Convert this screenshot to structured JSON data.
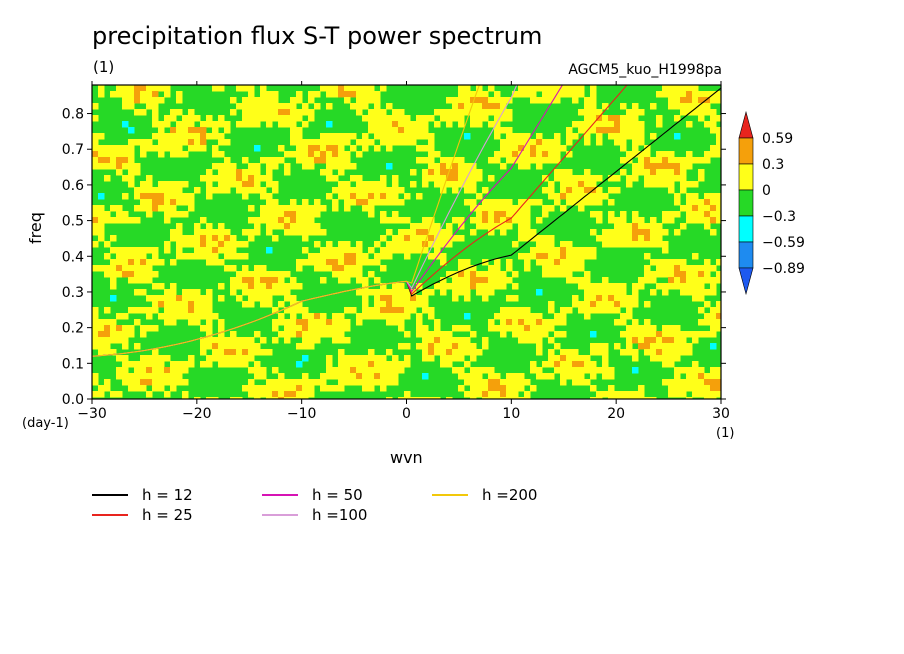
{
  "chart_data": {
    "type": "heatmap",
    "title": "precipitation flux S-T power spectrum",
    "subtitle_left": "(1)",
    "subtitle_right": "AGCM5_kuo_H1998pa",
    "xlabel": "wvn",
    "xunit": "(1)",
    "ylabel": "freq",
    "yunit": "(day-1)",
    "xlim": [
      -30,
      30
    ],
    "ylim": [
      0,
      0.88
    ],
    "xticks": [
      "-30",
      "-20",
      "-10",
      "0",
      "10",
      "20",
      "30"
    ],
    "yticks": [
      "0.0",
      "0.1",
      "0.2",
      "0.3",
      "0.4",
      "0.5",
      "0.6",
      "0.7",
      "0.8"
    ],
    "colorbar": {
      "levels": [
        "0.59",
        "0.3",
        "0",
        "-0.3",
        "-0.59",
        "-0.89"
      ],
      "colors": [
        "#e8241e",
        "#f5a00b",
        "#ffff19",
        "#26d926",
        "#00ffff",
        "#1e8bf0",
        "#1e5af0"
      ]
    },
    "dispersion_curves": [
      {
        "name": "h = 12",
        "color": "#000000",
        "h": 12
      },
      {
        "name": "h = 25",
        "color": "#e8241e",
        "h": 25
      },
      {
        "name": "h = 50",
        "color": "#d613b4",
        "h": 50
      },
      {
        "name": "h =100",
        "color": "#d99ed9",
        "h": 100
      },
      {
        "name": "h =200",
        "color": "#f2c80a",
        "h": 200
      }
    ]
  }
}
